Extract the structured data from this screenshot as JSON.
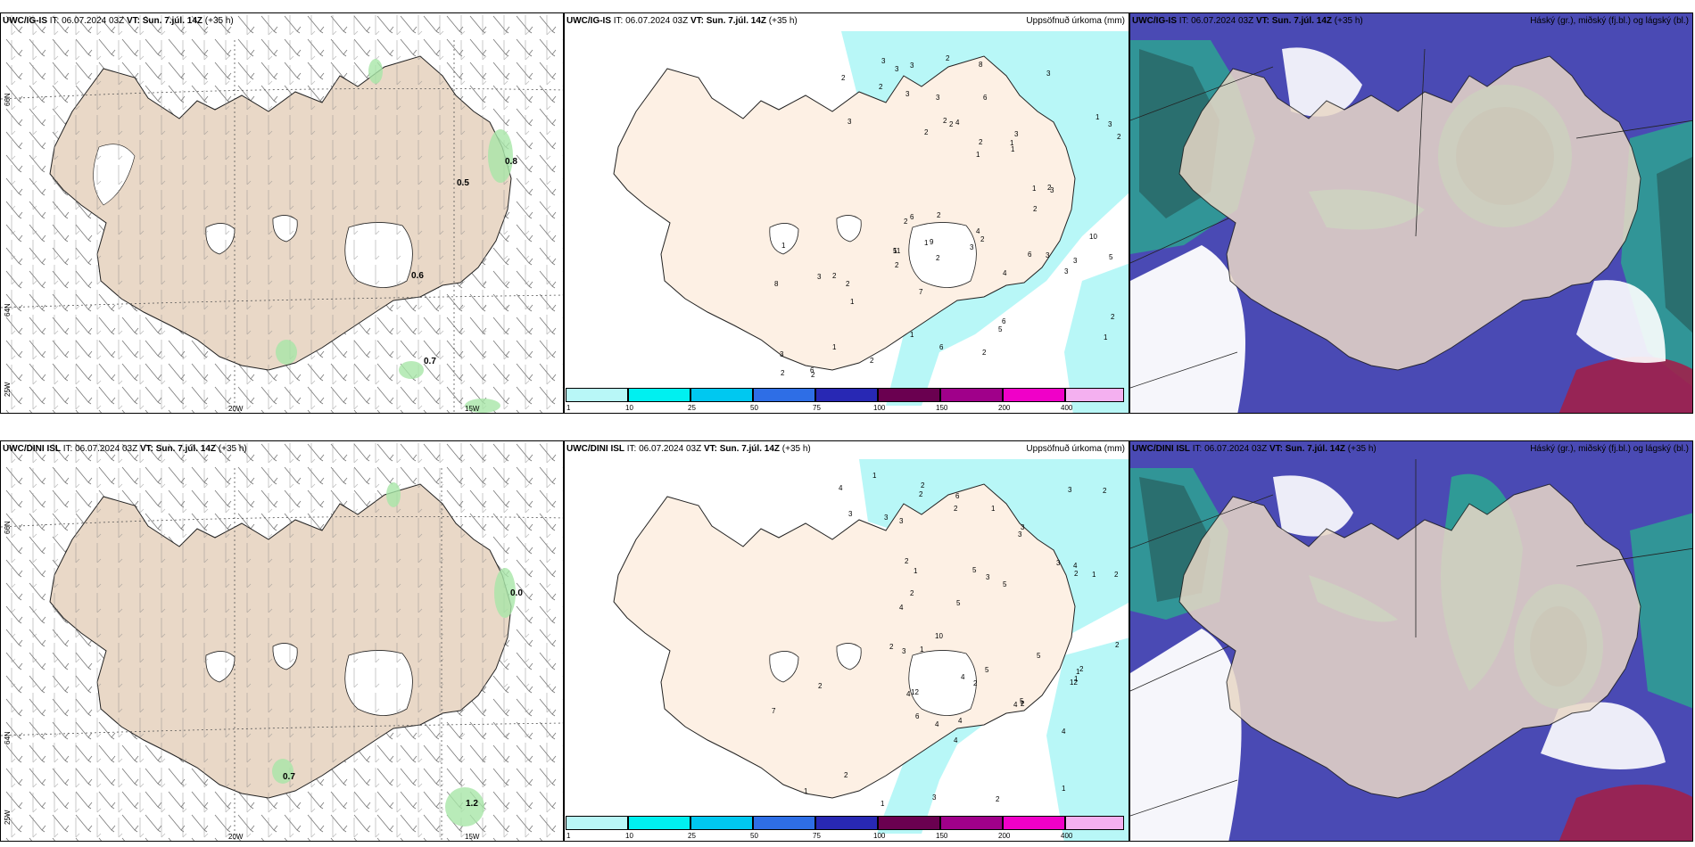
{
  "rows": [
    {
      "model": "UWC/IG-IS",
      "it_label": "IT:",
      "it_value": "06.07.2024 03Z",
      "vt_label": "VT:",
      "vt_value": "Sun. 7.júl. 14Z",
      "lead": "(+35 h)",
      "wind_values": [
        {
          "text": "0.8",
          "x": 565,
          "y": 183
        },
        {
          "text": "0.5",
          "x": 511,
          "y": 207
        },
        {
          "text": "0.6",
          "x": 460,
          "y": 311
        },
        {
          "text": "0.7",
          "x": 474,
          "y": 407
        }
      ]
    },
    {
      "model": "UWC/DINI ISL",
      "it_label": "IT:",
      "it_value": "06.07.2024 03Z",
      "vt_label": "VT:",
      "vt_value": "Sun. 7.júl. 14Z",
      "lead": "(+35 h)",
      "wind_values": [
        {
          "text": "0.0",
          "x": 571,
          "y": 667
        },
        {
          "text": "0.7",
          "x": 316,
          "y": 873
        },
        {
          "text": "1.2",
          "x": 521,
          "y": 903
        }
      ]
    }
  ],
  "precip_title": "Uppsöfnuð úrkoma (mm)",
  "cloud_title": "Háský (gr.), miðský (fj.bl.) og lágský (bl.)",
  "axis_labels": {
    "lat66": "66N",
    "lat64": "64N",
    "lon25": "25W",
    "lon20": "20W",
    "lon15": "15W"
  },
  "colorbar": {
    "ticks": [
      "1",
      "10",
      "25",
      "50",
      "75",
      "100",
      "150",
      "200",
      "400"
    ],
    "colors": [
      "#b8f7f7",
      "#00f0f0",
      "#00c8f0",
      "#2e6ee6",
      "#2828b4",
      "#6a0050",
      "#a0008a",
      "#f000c8",
      "#f4b0f0"
    ]
  },
  "precip_numbers_top": [
    "2",
    "2",
    "2",
    "2",
    "3",
    "3",
    "3",
    "3",
    "6",
    "4",
    "5",
    "9",
    "6",
    "3",
    "3",
    "3",
    "8",
    "2",
    "1",
    "1",
    "1",
    "4",
    "2",
    "3",
    "3",
    "2",
    "3",
    "10",
    "2",
    "4",
    "2",
    "2",
    "2",
    "2",
    "3",
    "1",
    "2",
    "2",
    "1",
    "2",
    "3",
    "5",
    "5",
    "2",
    "1",
    "2",
    "2",
    "6",
    "3",
    "1",
    "1",
    "8",
    "2",
    "6",
    "6",
    "3",
    "11",
    "7",
    "1",
    "1",
    "2",
    "6",
    "2",
    "3",
    "1",
    "3",
    "2"
  ],
  "precip_numbers_bottom": [
    "1",
    "2",
    "2",
    "3",
    "3",
    "3",
    "4",
    "2",
    "4",
    "3",
    "5",
    "4",
    "6",
    "5",
    "4",
    "7",
    "5",
    "3",
    "3",
    "10",
    "1",
    "2",
    "2",
    "1",
    "2",
    "2",
    "3",
    "2",
    "2",
    "3",
    "1",
    "3",
    "1",
    "5",
    "5",
    "2",
    "4",
    "2",
    "2",
    "1",
    "1",
    "1",
    "2",
    "2",
    "3",
    "2",
    "1",
    "5",
    "7",
    "4",
    "12",
    "4",
    "4",
    "12",
    "4",
    "2",
    "6",
    "4",
    "1"
  ]
}
